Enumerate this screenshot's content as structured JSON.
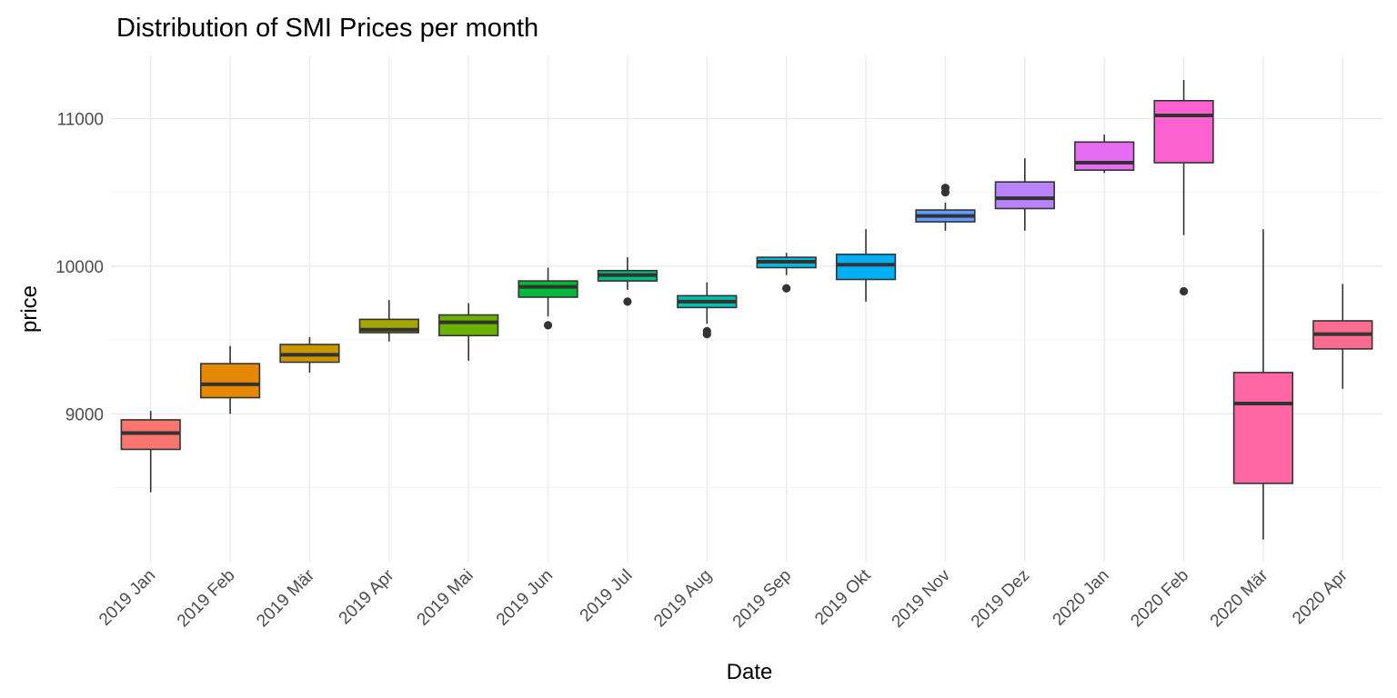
{
  "chart_data": {
    "type": "boxplot",
    "title": "Distribution of SMI Prices per month",
    "xlabel": "Date",
    "ylabel": "price",
    "ylim": [
      8000,
      11420
    ],
    "yticks": [
      9000,
      10000,
      11000
    ],
    "grid": true,
    "legend": "none",
    "categories": [
      "2019 Jan",
      "2019 Feb",
      "2019 Mär",
      "2019 Apr",
      "2019 Mai",
      "2019 Jun",
      "2019 Jul",
      "2019 Aug",
      "2019 Sep",
      "2019 Okt",
      "2019 Nov",
      "2019 Dez",
      "2020 Jan",
      "2020 Feb",
      "2020 Mär",
      "2020 Apr"
    ],
    "colors": [
      "#F8766D",
      "#E58700",
      "#C99800",
      "#A3A500",
      "#6BB100",
      "#00BA38",
      "#00BF7D",
      "#00C0AF",
      "#00BCD8",
      "#00B0F6",
      "#619CFF",
      "#B983FF",
      "#E76BF3",
      "#FD61D1",
      "#FF67A4",
      "#FF6C91"
    ],
    "boxes": [
      {
        "min": 8470,
        "q1": 8760,
        "median": 8870,
        "q3": 8960,
        "max": 9020,
        "outliers": []
      },
      {
        "min": 9000,
        "q1": 9110,
        "median": 9200,
        "q3": 9340,
        "max": 9460,
        "outliers": []
      },
      {
        "min": 9280,
        "q1": 9350,
        "median": 9400,
        "q3": 9470,
        "max": 9520,
        "outliers": []
      },
      {
        "min": 9490,
        "q1": 9550,
        "median": 9570,
        "q3": 9640,
        "max": 9770,
        "outliers": []
      },
      {
        "min": 9360,
        "q1": 9530,
        "median": 9620,
        "q3": 9670,
        "max": 9750,
        "outliers": []
      },
      {
        "min": 9660,
        "q1": 9790,
        "median": 9860,
        "q3": 9900,
        "max": 9990,
        "outliers": [
          9600
        ]
      },
      {
        "min": 9840,
        "q1": 9900,
        "median": 9940,
        "q3": 9970,
        "max": 10060,
        "outliers": [
          9760
        ]
      },
      {
        "min": 9610,
        "q1": 9720,
        "median": 9760,
        "q3": 9800,
        "max": 9890,
        "outliers": [
          9540,
          9560
        ]
      },
      {
        "min": 9940,
        "q1": 9990,
        "median": 10030,
        "q3": 10060,
        "max": 10090,
        "outliers": [
          9850
        ]
      },
      {
        "min": 9760,
        "q1": 9910,
        "median": 10010,
        "q3": 10080,
        "max": 10250,
        "outliers": []
      },
      {
        "min": 10240,
        "q1": 10300,
        "median": 10340,
        "q3": 10380,
        "max": 10430,
        "outliers": [
          10500,
          10530
        ]
      },
      {
        "min": 10240,
        "q1": 10390,
        "median": 10460,
        "q3": 10570,
        "max": 10730,
        "outliers": []
      },
      {
        "min": 10630,
        "q1": 10650,
        "median": 10700,
        "q3": 10840,
        "max": 10890,
        "outliers": []
      },
      {
        "min": 10210,
        "q1": 10700,
        "median": 11020,
        "q3": 11120,
        "max": 11260,
        "outliers": [
          9830
        ]
      },
      {
        "min": 8150,
        "q1": 8530,
        "median": 9070,
        "q3": 9280,
        "max": 10250,
        "outliers": []
      },
      {
        "min": 9170,
        "q1": 9440,
        "median": 9540,
        "q3": 9630,
        "max": 9880,
        "outliers": []
      }
    ]
  }
}
